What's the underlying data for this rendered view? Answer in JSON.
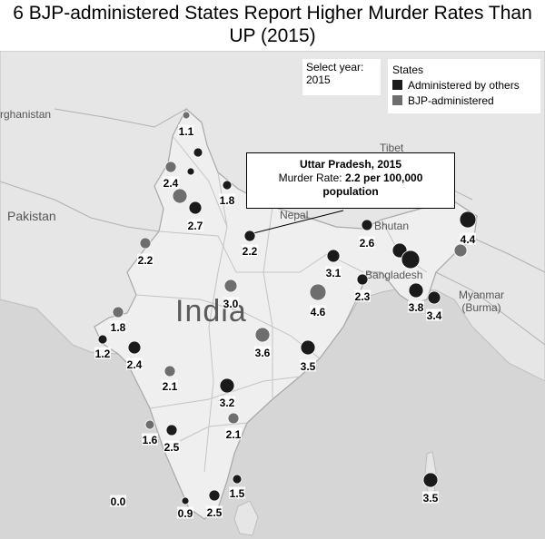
{
  "title": "6 BJP-administered States Report Higher Murder Rates Than UP (2015)",
  "year_selector": {
    "label": "Select year:",
    "value": "2015"
  },
  "legend": {
    "title": "States",
    "items": [
      {
        "label": "Administered by others",
        "color": "#1a1a1a"
      },
      {
        "label": "BJP-administered",
        "color": "#6e6e6e"
      }
    ]
  },
  "tooltip": {
    "title": "Uttar Pradesh, 2015",
    "metric_label": "Murder Rate:",
    "metric_value": "2.2 per 100,000",
    "metric_unit": "population"
  },
  "map_labels": {
    "country": "India",
    "pakistan": "Pakistan",
    "afghanistan": "rghanistan",
    "tibet": "Tibet",
    "nepal": "Nepal",
    "bhutan": "Bhutan",
    "bangladesh": "Bangladesh",
    "myanmar": "Myanmar\n(Burma)"
  },
  "colors": {
    "others": "#1a1a1a",
    "bjp": "#6e6e6e",
    "land": "#ececec",
    "water": "#d6d6d6"
  },
  "states": [
    {
      "value": "1.1",
      "group": "bjp"
    },
    {
      "value": "",
      "group": "others"
    },
    {
      "value": "",
      "group": "others"
    },
    {
      "value": "2.4",
      "group": "bjp"
    },
    {
      "value": "",
      "group": "bjp"
    },
    {
      "value": "1.8",
      "group": "others"
    },
    {
      "value": "2.7",
      "group": "others"
    },
    {
      "value": "2.2",
      "group": "others"
    },
    {
      "value": "2.2",
      "group": "bjp"
    },
    {
      "value": "2.6",
      "group": "others"
    },
    {
      "value": "4.4",
      "group": "others"
    },
    {
      "value": "",
      "group": "bjp"
    },
    {
      "value": "3.1",
      "group": "others"
    },
    {
      "value": "",
      "group": "others"
    },
    {
      "value": "",
      "group": "others"
    },
    {
      "value": "2.3",
      "group": "others"
    },
    {
      "value": "3.0",
      "group": "bjp"
    },
    {
      "value": "4.6",
      "group": "bjp"
    },
    {
      "value": "3.8",
      "group": "others"
    },
    {
      "value": "3.4",
      "group": "others"
    },
    {
      "value": "1.8",
      "group": "bjp"
    },
    {
      "value": "1.2",
      "group": "others"
    },
    {
      "value": "3.6",
      "group": "bjp"
    },
    {
      "value": "3.5",
      "group": "others"
    },
    {
      "value": "2.4",
      "group": "others"
    },
    {
      "value": "2.1",
      "group": "bjp"
    },
    {
      "value": "3.2",
      "group": "others"
    },
    {
      "value": "2.1",
      "group": "bjp"
    },
    {
      "value": "1.6",
      "group": "bjp"
    },
    {
      "value": "2.5",
      "group": "others"
    },
    {
      "value": "1.5",
      "group": "others"
    },
    {
      "value": "0.0",
      "group": "others"
    },
    {
      "value": "0.9",
      "group": "others"
    },
    {
      "value": "2.5",
      "group": "others"
    },
    {
      "value": "3.5",
      "group": "others"
    }
  ]
}
